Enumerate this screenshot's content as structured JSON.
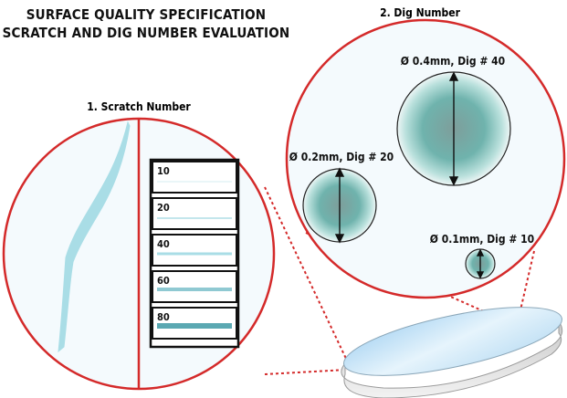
{
  "header": {
    "title_line1": "SURFACE QUALITY SPECIFICATION",
    "title_line2": "SCRATCH AND DIG NUMBER EVALUATION"
  },
  "scratch": {
    "heading": "1. Scratch Number",
    "levels": [
      {
        "label": "10"
      },
      {
        "label": "20"
      },
      {
        "label": "40"
      },
      {
        "label": "60"
      },
      {
        "label": "80"
      }
    ]
  },
  "dig": {
    "heading": "2. Dig Number",
    "items": [
      {
        "label": "Ø 0.4mm, Dig # 40"
      },
      {
        "label": "Ø 0.2mm, Dig # 20"
      },
      {
        "label": "Ø 0.1mm, Dig # 10"
      }
    ]
  },
  "colors": {
    "outline": "#d42a2a",
    "scratch": "#9fd7df",
    "dig": "#5fa8a3",
    "lens": "#cfe7f7"
  }
}
